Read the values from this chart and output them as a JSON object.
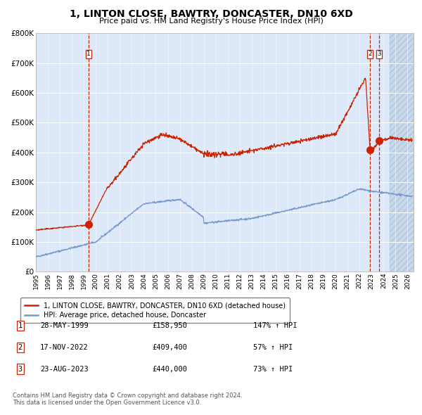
{
  "title": "1, LINTON CLOSE, BAWTRY, DONCASTER, DN10 6XD",
  "subtitle": "Price paid vs. HM Land Registry's House Price Index (HPI)",
  "ytick_values": [
    0,
    100000,
    200000,
    300000,
    400000,
    500000,
    600000,
    700000,
    800000
  ],
  "ylim": [
    0,
    800000
  ],
  "xlim_start": 1995.0,
  "xlim_end": 2026.5,
  "hpi_color": "#7799cc",
  "price_color": "#cc2200",
  "bg_color": "#dde8f8",
  "grid_color": "#ffffff",
  "sale_dates": [
    1999.38,
    2022.88,
    2023.64
  ],
  "sale_prices": [
    158950,
    409400,
    440000
  ],
  "sale_labels": [
    "1",
    "2",
    "3"
  ],
  "legend_line1": "1, LINTON CLOSE, BAWTRY, DONCASTER, DN10 6XD (detached house)",
  "legend_line2": "HPI: Average price, detached house, Doncaster",
  "table_rows": [
    [
      "1",
      "28-MAY-1999",
      "£158,950",
      "147% ↑ HPI"
    ],
    [
      "2",
      "17-NOV-2022",
      "£409,400",
      "57% ↑ HPI"
    ],
    [
      "3",
      "23-AUG-2023",
      "£440,000",
      "73% ↑ HPI"
    ]
  ],
  "footnote": "Contains HM Land Registry data © Crown copyright and database right 2024.\nThis data is licensed under the Open Government Licence v3.0.",
  "dashed_line_color": "#cc2200",
  "future_start": 2024.5
}
